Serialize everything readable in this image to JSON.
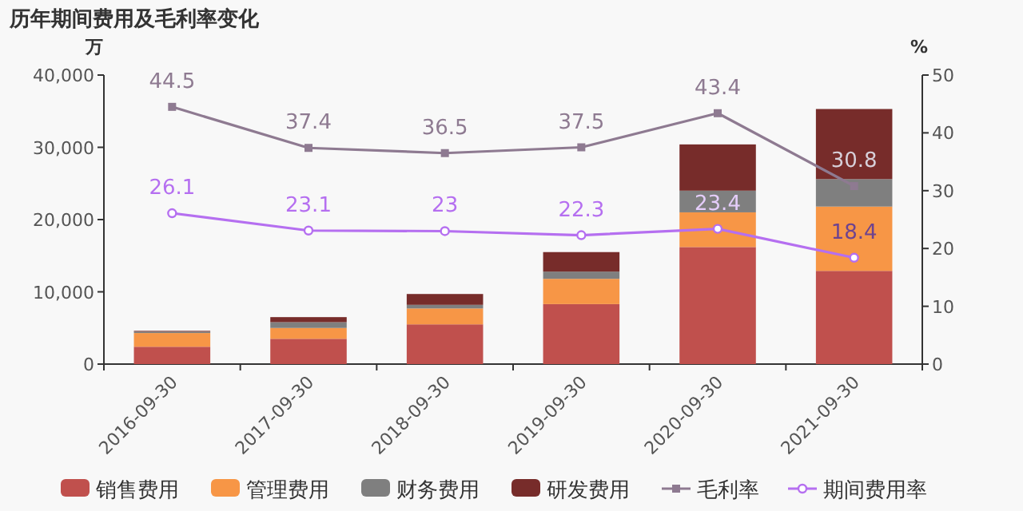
{
  "chart_data": {
    "type": "bar",
    "title": "历年期间费用及毛利率变化",
    "ylabel": "万",
    "y2label": "%",
    "stacked": true,
    "legend": "bottom",
    "grid": false,
    "categories": [
      "2016-09-30",
      "2017-09-30",
      "2018-09-30",
      "2019-09-30",
      "2020-09-30",
      "2021-09-30"
    ],
    "ylim": [
      0,
      40000
    ],
    "yticks": [
      0,
      {
        "value": 10000,
        "label": "10,000"
      },
      {
        "value": 20000,
        "label": "20,000"
      },
      {
        "value": 30000,
        "label": "30,000"
      },
      {
        "value": 40000,
        "label": "40,000"
      }
    ],
    "y2lim": [
      0,
      50
    ],
    "y2ticks": [
      0,
      10,
      20,
      30,
      40,
      50
    ],
    "series": [
      {
        "name": "销售费用",
        "color": "#c0504d",
        "values": [
          2400,
          3500,
          5500,
          8300,
          16200,
          12900
        ]
      },
      {
        "name": "管理费用",
        "color": "#f79646",
        "values": [
          1900,
          1500,
          2200,
          3500,
          4800,
          8900
        ]
      },
      {
        "name": "财务费用",
        "color": "#7f7f7f",
        "values": [
          200,
          800,
          500,
          1000,
          3000,
          3800
        ]
      },
      {
        "name": "研发费用",
        "color": "#772c2a",
        "values": [
          100,
          700,
          1500,
          2700,
          6400,
          9700
        ]
      },
      {
        "name": "毛利率",
        "type": "line",
        "axis": "y2",
        "color": "#8e7a91",
        "marker": "square",
        "values": [
          44.5,
          37.4,
          36.5,
          37.5,
          43.4,
          30.8
        ],
        "value_labels": [
          "44.5",
          "37.4",
          "36.5",
          "37.5",
          "43.4",
          "30.8"
        ]
      },
      {
        "name": "期间费用率",
        "type": "line",
        "axis": "y2",
        "color": "#b56ff0",
        "marker": "circle",
        "values": [
          26.1,
          23.1,
          23,
          22.3,
          23.4,
          18.4
        ],
        "value_labels": [
          "26.1",
          "23.1",
          "23",
          "22.3",
          "23.4",
          "18.4"
        ]
      }
    ]
  }
}
